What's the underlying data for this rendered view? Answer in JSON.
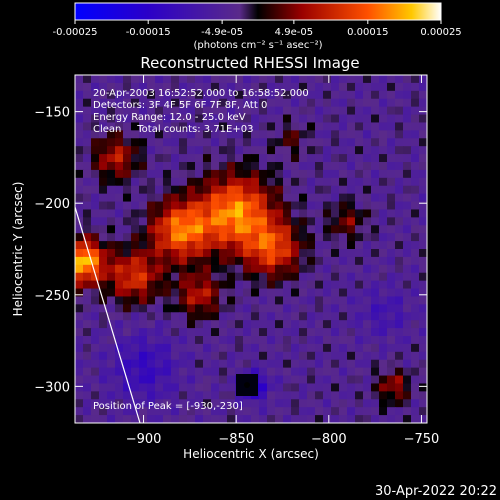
{
  "chart_data": {
    "type": "heatmap",
    "title": "Reconstructed RHESSI Image",
    "xlabel": "Heliocentric X (arcsec)",
    "ylabel": "Heliocentric Y (arcsec)",
    "xlim": [
      -937,
      -747
    ],
    "ylim": [
      -320,
      -130
    ],
    "xticks": [
      -900,
      -850,
      -800,
      -750
    ],
    "xtick_labels": [
      "−900",
      "−850",
      "−800",
      "−750"
    ],
    "yticks": [
      -150,
      -200,
      -250,
      -300
    ],
    "ytick_labels": [
      "−150",
      "−200",
      "−250",
      "−300"
    ],
    "colorbar": {
      "min": -0.00025,
      "max": 0.00025,
      "tick_values": [
        -0.00025,
        -0.00015,
        -4.9e-05,
        4.9e-05,
        0.00015,
        0.00025
      ],
      "tick_labels": [
        "-0.00025",
        "-0.00015",
        "-4.9e-05",
        "4.9e-05",
        "0.00015",
        "0.00025"
      ],
      "units": "(photons cm⁻² s⁻¹ asec⁻²)"
    },
    "info_lines": [
      "20-Apr-2003 16:52:52.000 to 16:58:52.000",
      "Detectors: 3F 4F 5F 6F 7F 8F, Att 0",
      "Energy Range: 12.0 - 25.0 keV",
      "Clean     Total counts: 3.71E+03"
    ],
    "peak_label": "Position of Peak = [-930,-230]",
    "peak": [
      -930,
      -230
    ],
    "intensity_blobs": [
      {
        "x": -850,
        "y": -205,
        "r": 20,
        "amp": 0.00022
      },
      {
        "x": -880,
        "y": -215,
        "r": 16,
        "amp": 0.0002
      },
      {
        "x": -933,
        "y": -232,
        "r": 12,
        "amp": 0.00025
      },
      {
        "x": -905,
        "y": -240,
        "r": 14,
        "amp": 0.00015
      },
      {
        "x": -830,
        "y": -225,
        "r": 15,
        "amp": 0.00016
      },
      {
        "x": -870,
        "y": -250,
        "r": 12,
        "amp": 0.00012
      },
      {
        "x": -915,
        "y": -175,
        "r": 12,
        "amp": 0.00012
      },
      {
        "x": -790,
        "y": -210,
        "r": 10,
        "amp": 8e-05
      },
      {
        "x": -765,
        "y": -300,
        "r": 9,
        "amp": 0.0001
      },
      {
        "x": -820,
        "y": -165,
        "r": 9,
        "amp": 6e-05
      },
      {
        "x": -840,
        "y": -300,
        "r": 8,
        "amp": -0.00012
      },
      {
        "x": -900,
        "y": -290,
        "r": 18,
        "amp": -8e-05
      },
      {
        "x": -770,
        "y": -260,
        "r": 14,
        "amp": -5e-05
      }
    ]
  },
  "footer": {
    "timestamp": "30-Apr-2022 20:22"
  }
}
